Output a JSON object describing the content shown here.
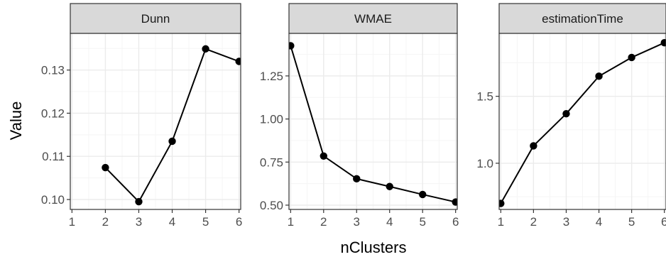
{
  "chart_data": {
    "type": "line",
    "layout": "facets",
    "xlabel": "nClusters",
    "ylabel": "Value",
    "x_ticks": [
      1,
      2,
      3,
      4,
      5,
      6
    ],
    "xlim": [
      0.95,
      6.05
    ],
    "colors": {
      "strip_fill": "#d9d9d9",
      "panel_border": "#333333",
      "grid_major": "#ebebeb",
      "grid_minor": "#f5f5f5",
      "line": "#000000",
      "tick_text": "#4d4d4d"
    },
    "facets": [
      {
        "title": "Dunn",
        "x": [
          2,
          3,
          4,
          5,
          6
        ],
        "y": [
          0.1074,
          0.0995,
          0.1135,
          0.1349,
          0.132
        ],
        "ylim": [
          0.0977,
          0.1385
        ],
        "y_ticks": [
          0.1,
          0.11,
          0.12,
          0.13
        ],
        "y_tick_labels": [
          "0.10",
          "0.11",
          "0.12",
          "0.13"
        ]
      },
      {
        "title": "WMAE",
        "x": [
          1,
          2,
          3,
          4,
          5,
          6
        ],
        "y": [
          1.425,
          0.785,
          0.653,
          0.608,
          0.562,
          0.518
        ],
        "ylim": [
          0.4751,
          1.4969
        ],
        "y_ticks": [
          0.5,
          0.75,
          1.0,
          1.25
        ],
        "y_tick_labels": [
          "0.50",
          "0.75",
          "1.00",
          "1.25"
        ]
      },
      {
        "title": "estimationTime",
        "x": [
          1,
          2,
          3,
          4,
          5,
          6
        ],
        "y": [
          0.7,
          1.13,
          1.37,
          1.65,
          1.79,
          1.9
        ],
        "ylim": [
          0.655,
          1.97
        ],
        "y_ticks": [
          1.0,
          1.5
        ],
        "y_tick_labels": [
          "1.0",
          "1.5"
        ]
      }
    ]
  }
}
